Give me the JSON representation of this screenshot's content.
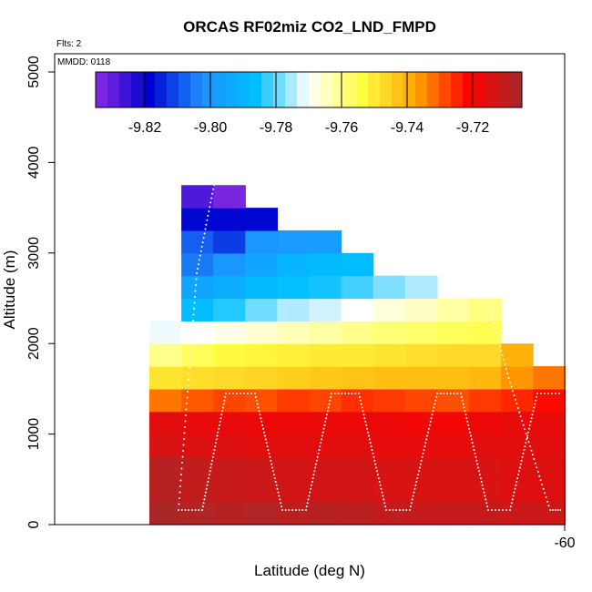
{
  "chart_data": {
    "type": "heatmap",
    "title": "ORCAS RF02miz CO2_LND_FMPD",
    "annotations": [
      "Flts: 2",
      "MMDD: 0118"
    ],
    "xlabel": "Latitude (deg N)",
    "ylabel": "Altitude (m)",
    "x_tick_labels": [
      "-60"
    ],
    "y_ticks": [
      0,
      1000,
      2000,
      3000,
      4000,
      5000
    ],
    "ylim": [
      0,
      5000
    ],
    "colorbar": {
      "range": [
        -9.835,
        -9.705
      ],
      "tick_values": [
        -9.82,
        -9.8,
        -9.78,
        -9.76,
        -9.74,
        -9.72
      ],
      "tick_labels": [
        "-9.82",
        "-9.80",
        "-9.78",
        "-9.76",
        "-9.74",
        "-9.72"
      ],
      "colors": [
        "#8a2be2",
        "#0000d0",
        "#1e90ff",
        "#00bfff",
        "#ffffff",
        "#ffff44",
        "#ffa500",
        "#ff0000",
        "#a52a2a"
      ]
    },
    "layers": [
      {
        "alt_bottom": 0,
        "alt_top": 250,
        "start_col": 0,
        "values": [
          -9.706,
          -9.707,
          -9.708,
          -9.707,
          -9.709,
          -9.708,
          -9.709,
          -9.71,
          -9.711,
          -9.711,
          -9.711,
          -9.712,
          -9.712
        ]
      },
      {
        "alt_bottom": 250,
        "alt_top": 500,
        "start_col": 0,
        "values": [
          -9.708,
          -9.71,
          -9.711,
          -9.712,
          -9.713,
          -9.713,
          -9.713,
          -9.714,
          -9.714,
          -9.714,
          -9.714,
          -9.715,
          -9.715
        ]
      },
      {
        "alt_bottom": 500,
        "alt_top": 750,
        "start_col": 0,
        "values": [
          -9.708,
          -9.71,
          -9.711,
          -9.712,
          -9.713,
          -9.713,
          -9.713,
          -9.714,
          -9.714,
          -9.714,
          -9.714,
          -9.715,
          -9.715
        ]
      },
      {
        "alt_bottom": 750,
        "alt_top": 1000,
        "start_col": 0,
        "values": [
          -9.714,
          -9.715,
          -9.715,
          -9.716,
          -9.716,
          -9.716,
          -9.716,
          -9.717,
          -9.717,
          -9.717,
          -9.716,
          -9.716,
          -9.716
        ]
      },
      {
        "alt_bottom": 1000,
        "alt_top": 1250,
        "start_col": 0,
        "values": [
          -9.716,
          -9.717,
          -9.717,
          -9.718,
          -9.718,
          -9.718,
          -9.718,
          -9.718,
          -9.719,
          -9.719,
          -9.718,
          -9.717,
          -9.717
        ]
      },
      {
        "alt_bottom": 1250,
        "alt_top": 1500,
        "start_col": 0,
        "values": [
          -9.733,
          -9.73,
          -9.728,
          -9.729,
          -9.727,
          -9.728,
          -9.726,
          -9.727,
          -9.728,
          -9.729,
          -9.727,
          -9.725,
          -9.722
        ]
      },
      {
        "alt_bottom": 1500,
        "alt_top": 1750,
        "start_col": 0,
        "values": [
          -9.749,
          -9.748,
          -9.747,
          -9.746,
          -9.745,
          -9.744,
          -9.743,
          -9.742,
          -9.742,
          -9.742,
          -9.741,
          -9.736,
          -9.733
        ]
      },
      {
        "alt_bottom": 1750,
        "alt_top": 2000,
        "start_col": 0,
        "values": [
          -9.76,
          -9.756,
          -9.753,
          -9.752,
          -9.751,
          -9.75,
          -9.75,
          -9.749,
          -9.748,
          -9.747,
          -9.747,
          -9.74
        ]
      },
      {
        "alt_bottom": 2000,
        "alt_top": 2250,
        "start_col": 0,
        "values": [
          -9.771,
          -9.77,
          -9.768,
          -9.766,
          -9.764,
          -9.762,
          -9.76,
          -9.758,
          -9.757,
          -9.756,
          -9.755
        ]
      },
      {
        "alt_bottom": 2250,
        "alt_top": 2500,
        "start_col": 1,
        "values": [
          -9.787,
          -9.784,
          -9.779,
          -9.775,
          -9.773,
          -9.77,
          -9.767,
          -9.765,
          -9.762,
          -9.759
        ]
      },
      {
        "alt_bottom": 2500,
        "alt_top": 2750,
        "start_col": 1,
        "values": [
          -9.795,
          -9.792,
          -9.788,
          -9.786,
          -9.785,
          -9.782,
          -9.778,
          -9.775
        ]
      },
      {
        "alt_bottom": 2750,
        "alt_top": 3000,
        "start_col": 1,
        "values": [
          -9.805,
          -9.8,
          -9.795,
          -9.79,
          -9.788,
          -9.787
        ]
      },
      {
        "alt_bottom": 3000,
        "alt_top": 3250,
        "start_col": 1,
        "values": [
          -9.808,
          -9.812,
          -9.8,
          -9.799,
          -9.798
        ]
      },
      {
        "alt_bottom": 3250,
        "alt_top": 3500,
        "start_col": 1,
        "values": [
          -9.818,
          -9.818,
          -9.818
        ]
      },
      {
        "alt_bottom": 3500,
        "alt_top": 3750,
        "start_col": 1,
        "values": [
          -9.828,
          -9.833
        ]
      }
    ]
  }
}
